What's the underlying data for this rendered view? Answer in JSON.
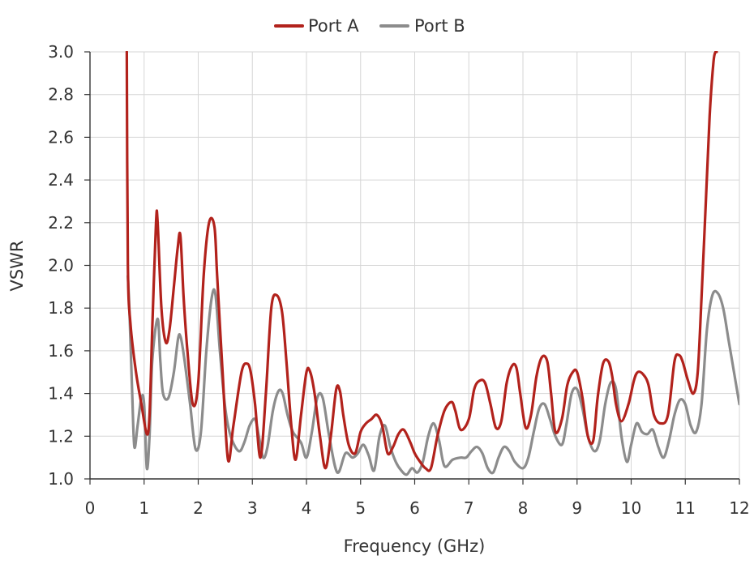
{
  "chart_data": {
    "type": "line",
    "title": "",
    "xlabel": "Frequency (GHz)",
    "ylabel": "VSWR",
    "xlim": [
      0,
      12
    ],
    "ylim": [
      1.0,
      3.0
    ],
    "xticks": [
      0,
      1,
      2,
      3,
      4,
      5,
      6,
      7,
      8,
      9,
      10,
      11,
      12
    ],
    "yticks": [
      1.0,
      1.2,
      1.4,
      1.6,
      1.8,
      2.0,
      2.2,
      2.4,
      2.6,
      2.8,
      3.0
    ],
    "xtick_labels": [
      "0",
      "1",
      "2",
      "3",
      "4",
      "5",
      "6",
      "7",
      "8",
      "9",
      "10",
      "11",
      "12"
    ],
    "ytick_labels": [
      "1.0",
      "1.2",
      "1.4",
      "1.6",
      "1.8",
      "2.0",
      "2.2",
      "2.4",
      "2.6",
      "2.8",
      "3.0"
    ],
    "grid": true,
    "legend_position": "top-center",
    "series": [
      {
        "name": "Port A",
        "color": "#b2221c",
        "x": [
          0.68,
          0.7,
          0.75,
          0.85,
          0.95,
          1.05,
          1.1,
          1.15,
          1.22,
          1.25,
          1.32,
          1.4,
          1.47,
          1.55,
          1.62,
          1.67,
          1.73,
          1.8,
          1.9,
          2.0,
          2.1,
          2.2,
          2.3,
          2.35,
          2.45,
          2.55,
          2.65,
          2.8,
          2.9,
          2.97,
          3.05,
          3.15,
          3.25,
          3.35,
          3.45,
          3.55,
          3.63,
          3.72,
          3.8,
          3.9,
          4.0,
          4.07,
          4.15,
          4.25,
          4.35,
          4.45,
          4.55,
          4.62,
          4.68,
          4.78,
          4.9,
          5.0,
          5.1,
          5.2,
          5.3,
          5.4,
          5.5,
          5.6,
          5.7,
          5.8,
          5.92,
          6.0,
          6.1,
          6.2,
          6.3,
          6.42,
          6.55,
          6.68,
          6.75,
          6.85,
          7.0,
          7.1,
          7.2,
          7.3,
          7.4,
          7.5,
          7.6,
          7.7,
          7.8,
          7.88,
          7.95,
          8.05,
          8.15,
          8.25,
          8.35,
          8.45,
          8.52,
          8.6,
          8.72,
          8.82,
          8.92,
          9.0,
          9.1,
          9.2,
          9.3,
          9.38,
          9.48,
          9.58,
          9.65,
          9.72,
          9.82,
          9.95,
          10.05,
          10.12,
          10.22,
          10.32,
          10.42,
          10.55,
          10.68,
          10.8,
          10.88,
          10.95,
          11.05,
          11.15,
          11.23,
          11.3,
          11.38,
          11.45,
          11.52,
          11.56,
          11.58
        ],
        "values": [
          3.0,
          2.0,
          1.72,
          1.5,
          1.35,
          1.21,
          1.3,
          1.7,
          2.2,
          2.2,
          1.8,
          1.64,
          1.7,
          1.9,
          2.08,
          2.14,
          1.85,
          1.6,
          1.35,
          1.45,
          1.95,
          2.2,
          2.18,
          1.95,
          1.5,
          1.09,
          1.25,
          1.5,
          1.54,
          1.5,
          1.35,
          1.1,
          1.4,
          1.8,
          1.86,
          1.78,
          1.55,
          1.25,
          1.09,
          1.3,
          1.5,
          1.5,
          1.4,
          1.2,
          1.05,
          1.2,
          1.42,
          1.41,
          1.3,
          1.16,
          1.12,
          1.22,
          1.26,
          1.28,
          1.3,
          1.25,
          1.12,
          1.15,
          1.21,
          1.23,
          1.17,
          1.12,
          1.08,
          1.05,
          1.05,
          1.2,
          1.32,
          1.36,
          1.32,
          1.23,
          1.28,
          1.42,
          1.46,
          1.45,
          1.35,
          1.24,
          1.27,
          1.45,
          1.53,
          1.52,
          1.4,
          1.24,
          1.3,
          1.48,
          1.57,
          1.55,
          1.4,
          1.22,
          1.28,
          1.44,
          1.5,
          1.5,
          1.38,
          1.2,
          1.18,
          1.38,
          1.54,
          1.55,
          1.48,
          1.35,
          1.27,
          1.35,
          1.46,
          1.5,
          1.49,
          1.44,
          1.3,
          1.26,
          1.3,
          1.55,
          1.58,
          1.55,
          1.46,
          1.4,
          1.5,
          1.85,
          2.3,
          2.7,
          2.95,
          3.0,
          3.0
        ]
      },
      {
        "name": "Port B",
        "color": "#8c8c8c",
        "x": [
          0.7,
          0.73,
          0.78,
          0.82,
          0.88,
          0.95,
          1.0,
          1.05,
          1.1,
          1.15,
          1.25,
          1.3,
          1.35,
          1.45,
          1.55,
          1.63,
          1.68,
          1.75,
          1.85,
          1.95,
          2.05,
          2.15,
          2.25,
          2.32,
          2.4,
          2.5,
          2.6,
          2.75,
          2.85,
          2.95,
          3.05,
          3.12,
          3.2,
          3.28,
          3.38,
          3.48,
          3.56,
          3.65,
          3.75,
          3.9,
          4.0,
          4.1,
          4.2,
          4.3,
          4.42,
          4.57,
          4.72,
          4.85,
          4.95,
          5.05,
          5.15,
          5.25,
          5.35,
          5.45,
          5.55,
          5.65,
          5.75,
          5.85,
          5.95,
          6.05,
          6.15,
          6.25,
          6.35,
          6.45,
          6.55,
          6.7,
          6.85,
          6.95,
          7.05,
          7.15,
          7.25,
          7.35,
          7.45,
          7.55,
          7.65,
          7.75,
          7.85,
          8.0,
          8.1,
          8.2,
          8.3,
          8.4,
          8.5,
          8.6,
          8.72,
          8.8,
          8.9,
          9.0,
          9.1,
          9.2,
          9.32,
          9.42,
          9.52,
          9.62,
          9.72,
          9.82,
          9.92,
          10.0,
          10.1,
          10.2,
          10.3,
          10.4,
          10.5,
          10.6,
          10.7,
          10.8,
          10.9,
          11.0,
          11.1,
          11.2,
          11.3,
          11.4,
          11.5,
          11.6,
          11.7,
          11.8,
          11.9,
          12.0
        ],
        "values": [
          1.95,
          1.78,
          1.4,
          1.15,
          1.25,
          1.38,
          1.35,
          1.05,
          1.2,
          1.55,
          1.75,
          1.55,
          1.4,
          1.38,
          1.5,
          1.66,
          1.66,
          1.55,
          1.35,
          1.14,
          1.22,
          1.6,
          1.85,
          1.86,
          1.6,
          1.33,
          1.2,
          1.13,
          1.17,
          1.25,
          1.28,
          1.2,
          1.1,
          1.15,
          1.32,
          1.41,
          1.4,
          1.3,
          1.22,
          1.17,
          1.1,
          1.22,
          1.38,
          1.38,
          1.2,
          1.03,
          1.12,
          1.1,
          1.12,
          1.16,
          1.11,
          1.04,
          1.2,
          1.25,
          1.15,
          1.08,
          1.04,
          1.02,
          1.05,
          1.03,
          1.08,
          1.2,
          1.26,
          1.18,
          1.06,
          1.09,
          1.1,
          1.1,
          1.13,
          1.15,
          1.12,
          1.05,
          1.03,
          1.1,
          1.15,
          1.13,
          1.08,
          1.05,
          1.1,
          1.22,
          1.33,
          1.35,
          1.28,
          1.2,
          1.16,
          1.25,
          1.4,
          1.42,
          1.33,
          1.2,
          1.13,
          1.18,
          1.35,
          1.45,
          1.42,
          1.2,
          1.08,
          1.16,
          1.26,
          1.22,
          1.21,
          1.23,
          1.15,
          1.1,
          1.18,
          1.3,
          1.37,
          1.35,
          1.25,
          1.22,
          1.35,
          1.7,
          1.86,
          1.87,
          1.8,
          1.65,
          1.5,
          1.35
        ]
      }
    ]
  }
}
